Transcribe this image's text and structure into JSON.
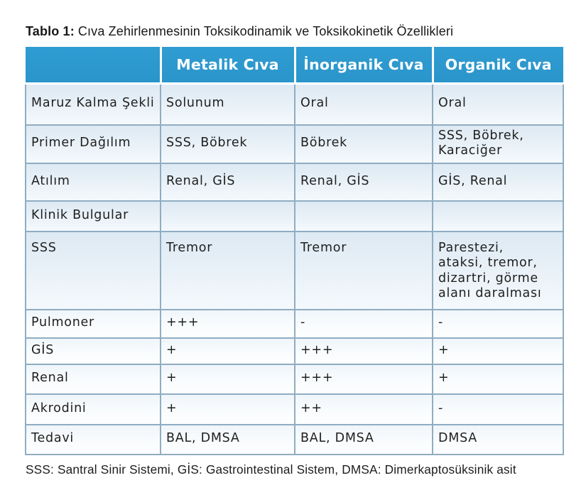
{
  "caption": {
    "label": "Tablo 1:",
    "text": "Cıva Zehirlenmesinin Toksikodinamik ve Toksikokinetik Özellikleri"
  },
  "table": {
    "columns": [
      "",
      "Metalik Cıva",
      "İnorganik Cıva",
      "Organik Cıva"
    ],
    "rows": [
      {
        "label": "Maruz Kalma Şekli",
        "cells": [
          "Solunum",
          "Oral",
          "Oral"
        ]
      },
      {
        "label": "Primer Dağılım",
        "cells": [
          "SSS, Böbrek",
          "Böbrek",
          "SSS, Böbrek,\nKaraciğer"
        ]
      },
      {
        "label": "Atılım",
        "cells": [
          "Renal, GİS",
          "Renal, GİS",
          "GİS, Renal"
        ]
      },
      {
        "label": "Klinik Bulgular",
        "cells": [
          "",
          "",
          ""
        ]
      },
      {
        "label": "SSS",
        "cells": [
          "Tremor",
          "Tremor",
          "Parestezi,\nataksi, tremor,\ndizartri, görme\nalanı daralması"
        ]
      },
      {
        "label": "Pulmoner",
        "cells": [
          "+++",
          "-",
          "-"
        ]
      },
      {
        "label": "GİS",
        "cells": [
          "+",
          "+++",
          "+"
        ]
      },
      {
        "label": "Renal",
        "cells": [
          "+",
          "+++",
          "+"
        ]
      },
      {
        "label": "Akrodini",
        "cells": [
          "+",
          "++",
          "-"
        ]
      },
      {
        "label": "Tedavi",
        "cells": [
          "BAL, DMSA",
          "BAL, DMSA",
          "DMSA"
        ]
      }
    ]
  },
  "footnote": "SSS: Santral Sinir Sistemi, GİS: Gastrointestinal Sistem, DMSA: Dimerkaptosüksinik asit",
  "colors": {
    "header_bg": "#2c98ce",
    "header_text": "#ffffff",
    "row_tint_upper": "#dde9f3",
    "row_tint_lower": "#edf4f9",
    "grid_line": "#8fadc2",
    "body_text": "#1f1f1f"
  }
}
